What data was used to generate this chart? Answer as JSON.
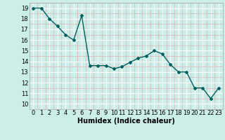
{
  "x": [
    0,
    1,
    2,
    3,
    4,
    5,
    6,
    7,
    8,
    9,
    10,
    11,
    12,
    13,
    14,
    15,
    16,
    17,
    18,
    19,
    20,
    21,
    22,
    23
  ],
  "y": [
    19.0,
    19.0,
    18.0,
    17.3,
    16.5,
    16.0,
    18.3,
    13.6,
    13.6,
    13.6,
    13.3,
    13.5,
    13.9,
    14.3,
    14.5,
    15.0,
    14.7,
    13.7,
    13.0,
    13.0,
    11.5,
    11.5,
    10.5,
    11.5
  ],
  "line_color": "#006060",
  "marker": "D",
  "marker_size": 2,
  "bg_color": "#cceee8",
  "grid_major_color": "#ffffff",
  "grid_minor_color": "#ddbcbc",
  "xlabel": "Humidex (Indice chaleur)",
  "xlabel_fontsize": 7,
  "xlim": [
    -0.5,
    23.5
  ],
  "ylim": [
    9.9,
    19.5
  ],
  "yticks": [
    10,
    11,
    12,
    13,
    14,
    15,
    16,
    17,
    18,
    19
  ],
  "xticks": [
    0,
    1,
    2,
    3,
    4,
    5,
    6,
    7,
    8,
    9,
    10,
    11,
    12,
    13,
    14,
    15,
    16,
    17,
    18,
    19,
    20,
    21,
    22,
    23
  ],
  "tick_fontsize": 6,
  "linewidth": 1.0
}
